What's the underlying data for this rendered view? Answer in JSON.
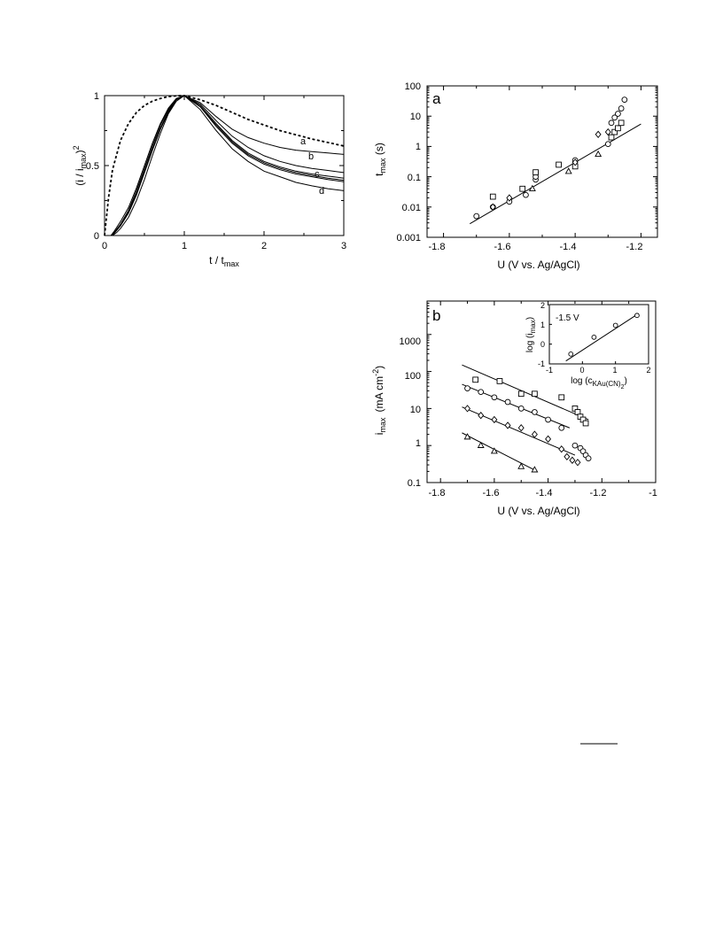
{
  "chart_data": [
    {
      "id": "transients",
      "type": "line",
      "xlim": [
        0,
        3
      ],
      "ylim": [
        0,
        1
      ],
      "xticks": [
        "0",
        "1",
        "2",
        "3"
      ],
      "yticks": [
        "0",
        "0.5",
        "1"
      ],
      "xlabel_main": "t / t",
      "xlabel_sub": "max",
      "ylabel_pre": "(i / i",
      "ylabel_sub": "max",
      "ylabel_post": ")",
      "ylabel_sup": "2",
      "series": [
        {
          "style": "dashed",
          "x": [
            0,
            0.05,
            0.1,
            0.2,
            0.3,
            0.4,
            0.5,
            0.6,
            0.7,
            0.8,
            0.9,
            1.0,
            1.2,
            1.4,
            1.6,
            1.8,
            2.0,
            2.2,
            2.4,
            2.6,
            2.8,
            3.0
          ],
          "y": [
            0,
            0.27,
            0.47,
            0.68,
            0.8,
            0.88,
            0.93,
            0.96,
            0.98,
            0.993,
            0.999,
            1.0,
            0.97,
            0.93,
            0.88,
            0.83,
            0.79,
            0.75,
            0.72,
            0.69,
            0.665,
            0.64
          ]
        },
        {
          "label": "a",
          "x": [
            0.08,
            0.12,
            0.2,
            0.3,
            0.4,
            0.5,
            0.6,
            0.7,
            0.8,
            0.9,
            1.0,
            1.2,
            1.4,
            1.6,
            1.8,
            2.0,
            2.2,
            2.4,
            2.6,
            2.8,
            3.0
          ],
          "y": [
            0.0,
            0.03,
            0.1,
            0.2,
            0.34,
            0.5,
            0.66,
            0.8,
            0.91,
            0.98,
            1.0,
            0.95,
            0.85,
            0.76,
            0.7,
            0.66,
            0.63,
            0.61,
            0.6,
            0.59,
            0.58
          ]
        },
        {
          "label": "b",
          "x": [
            0.08,
            0.12,
            0.2,
            0.3,
            0.4,
            0.5,
            0.6,
            0.7,
            0.8,
            0.9,
            1.0,
            1.2,
            1.4,
            1.6,
            1.8,
            2.0,
            2.2,
            2.4,
            2.6,
            2.8,
            3.0
          ],
          "y": [
            0.0,
            0.02,
            0.08,
            0.18,
            0.32,
            0.48,
            0.64,
            0.79,
            0.9,
            0.975,
            1.0,
            0.94,
            0.82,
            0.71,
            0.63,
            0.57,
            0.53,
            0.5,
            0.48,
            0.465,
            0.45
          ]
        },
        {
          "x": [
            0.08,
            0.12,
            0.2,
            0.3,
            0.4,
            0.5,
            0.6,
            0.7,
            0.8,
            0.9,
            1.0,
            1.2,
            1.4,
            1.6,
            1.8,
            2.0,
            2.2,
            2.4,
            2.6,
            2.8,
            3.0
          ],
          "y": [
            0.0,
            0.02,
            0.08,
            0.17,
            0.3,
            0.46,
            0.62,
            0.77,
            0.89,
            0.97,
            1.0,
            0.93,
            0.8,
            0.68,
            0.59,
            0.53,
            0.49,
            0.46,
            0.44,
            0.425,
            0.41
          ]
        },
        {
          "label": "c",
          "x": [
            0.08,
            0.12,
            0.2,
            0.3,
            0.4,
            0.5,
            0.6,
            0.7,
            0.8,
            0.9,
            1.0,
            1.2,
            1.4,
            1.6,
            1.8,
            2.0,
            2.2,
            2.4,
            2.6,
            2.8,
            3.0
          ],
          "y": [
            0.0,
            0.015,
            0.07,
            0.16,
            0.29,
            0.45,
            0.61,
            0.76,
            0.88,
            0.97,
            1.0,
            0.92,
            0.79,
            0.67,
            0.58,
            0.52,
            0.48,
            0.45,
            0.43,
            0.41,
            0.395
          ]
        },
        {
          "x": [
            0.08,
            0.12,
            0.2,
            0.3,
            0.4,
            0.5,
            0.6,
            0.7,
            0.8,
            0.9,
            1.0,
            1.2,
            1.4,
            1.6,
            1.8,
            2.0,
            2.2,
            2.4,
            2.6,
            2.8,
            3.0
          ],
          "y": [
            0.0,
            0.015,
            0.07,
            0.16,
            0.29,
            0.45,
            0.61,
            0.76,
            0.88,
            0.97,
            1.0,
            0.92,
            0.78,
            0.66,
            0.57,
            0.51,
            0.47,
            0.44,
            0.42,
            0.4,
            0.385
          ]
        },
        {
          "label": "d",
          "x": [
            0.1,
            0.15,
            0.2,
            0.3,
            0.4,
            0.5,
            0.6,
            0.7,
            0.8,
            0.9,
            1.0,
            1.2,
            1.4,
            1.6,
            1.8,
            2.0,
            2.2,
            2.4,
            2.6,
            2.8,
            3.0
          ],
          "y": [
            0.0,
            0.02,
            0.05,
            0.13,
            0.25,
            0.4,
            0.57,
            0.73,
            0.87,
            0.96,
            1.0,
            0.9,
            0.75,
            0.62,
            0.53,
            0.46,
            0.42,
            0.38,
            0.355,
            0.335,
            0.32
          ]
        }
      ]
    },
    {
      "id": "a",
      "panel_label": "a",
      "type": "scatter",
      "xlim": [
        -1.85,
        -1.15
      ],
      "ylim": [
        0.001,
        100
      ],
      "yscale": "log",
      "xticks": [
        "-1.8",
        "-1.6",
        "-1.4",
        "-1.2"
      ],
      "yticks": [
        "0.001",
        "0.01",
        "0.1",
        "1",
        "10",
        "100"
      ],
      "xlabel": "U  (V vs. Ag/AgCl)",
      "ylabel_main": "t",
      "ylabel_sub": "max",
      "ylabel_post": " (s)",
      "fit_line": {
        "x": [
          -1.72,
          -1.2
        ],
        "y": [
          0.0028,
          5.5
        ]
      },
      "series": [
        {
          "marker": "circle",
          "x": [
            -1.7,
            -1.65,
            -1.6,
            -1.55,
            -1.52,
            -1.52,
            -1.4,
            -1.3,
            -1.29,
            -1.28,
            -1.27,
            -1.26,
            -1.25
          ],
          "y": [
            0.005,
            0.01,
            0.015,
            0.025,
            0.08,
            0.1,
            0.35,
            1.2,
            6,
            9,
            12,
            18,
            35
          ]
        },
        {
          "marker": "square",
          "x": [
            -1.65,
            -1.56,
            -1.52,
            -1.45,
            -1.4,
            -1.29,
            -1.28,
            -1.27,
            -1.26
          ],
          "y": [
            0.022,
            0.04,
            0.14,
            0.25,
            0.22,
            2,
            3,
            4,
            6
          ]
        },
        {
          "marker": "diamond",
          "x": [
            -1.65,
            -1.6,
            -1.4,
            -1.33,
            -1.3
          ],
          "y": [
            0.01,
            0.02,
            0.3,
            2.5,
            3
          ]
        },
        {
          "marker": "triangle",
          "x": [
            -1.53,
            -1.42,
            -1.33
          ],
          "y": [
            0.04,
            0.15,
            0.55
          ]
        }
      ]
    },
    {
      "id": "b",
      "panel_label": "b",
      "type": "scatter",
      "xlim": [
        -1.85,
        -1.0
      ],
      "ylim": [
        0.1,
        8000
      ],
      "yscale": "log",
      "xticks": [
        "-1.8",
        "-1.6",
        "-1.4",
        "-1.2",
        "-1"
      ],
      "yticks": [
        "0.1",
        "1",
        "10",
        "100",
        "1000"
      ],
      "xlabel": "U  (V vs. Ag/AgCl)",
      "ylabel_main": "i",
      "ylabel_sub": "max",
      "ylabel_units": "(mA cm",
      "ylabel_sup": "-2",
      "ylabel_close": ")",
      "fit_lines": [
        {
          "x": [
            -1.72,
            -1.25
          ],
          "y": [
            150,
            5
          ]
        },
        {
          "x": [
            -1.72,
            -1.32
          ],
          "y": [
            45,
            3
          ]
        },
        {
          "x": [
            -1.72,
            -1.3
          ],
          "y": [
            11,
            0.55
          ]
        },
        {
          "x": [
            -1.72,
            -1.44
          ],
          "y": [
            2.2,
            0.2
          ]
        }
      ],
      "series": [
        {
          "marker": "square",
          "x": [
            -1.67,
            -1.58,
            -1.5,
            -1.45,
            -1.35,
            -1.3,
            -1.29,
            -1.28,
            -1.27,
            -1.26
          ],
          "y": [
            60,
            55,
            25,
            25,
            20,
            10,
            8,
            6,
            5,
            4
          ]
        },
        {
          "marker": "circle",
          "x": [
            -1.7,
            -1.65,
            -1.6,
            -1.55,
            -1.5,
            -1.45,
            -1.4,
            -1.35,
            -1.3,
            -1.28,
            -1.27,
            -1.26,
            -1.25
          ],
          "y": [
            35,
            28,
            20,
            15,
            10,
            8,
            5,
            3,
            1,
            0.85,
            0.7,
            0.55,
            0.45
          ]
        },
        {
          "marker": "diamond",
          "x": [
            -1.7,
            -1.65,
            -1.6,
            -1.55,
            -1.5,
            -1.45,
            -1.4,
            -1.35,
            -1.33,
            -1.31,
            -1.29
          ],
          "y": [
            10,
            6.5,
            5,
            3.5,
            3,
            2,
            1.5,
            0.8,
            0.5,
            0.4,
            0.35
          ]
        },
        {
          "marker": "triangle",
          "x": [
            -1.7,
            -1.65,
            -1.6,
            -1.5,
            -1.45
          ],
          "y": [
            1.7,
            1,
            0.7,
            0.27,
            0.22
          ]
        }
      ],
      "inset": {
        "xlim": [
          -1,
          2
        ],
        "ylim": [
          -1,
          2
        ],
        "xticks": [
          "-1",
          "0",
          "1",
          "2"
        ],
        "yticks": [
          "-1",
          "0",
          "1",
          "2"
        ],
        "annotation": "-1.5 V",
        "xlabel_pre": "log (c",
        "xlabel_sub": "KAu(CN)",
        "xlabel_sub2": "2",
        "xlabel_post": ")",
        "ylabel_pre": "log (i",
        "ylabel_sub": "max",
        "ylabel_post": ")",
        "fit_line": {
          "x": [
            -0.5,
            1.7
          ],
          "y": [
            -0.85,
            1.55
          ]
        },
        "points": {
          "x": [
            -0.35,
            0.35,
            1.0,
            1.65
          ],
          "y": [
            -0.5,
            0.35,
            0.95,
            1.45
          ]
        }
      }
    }
  ]
}
